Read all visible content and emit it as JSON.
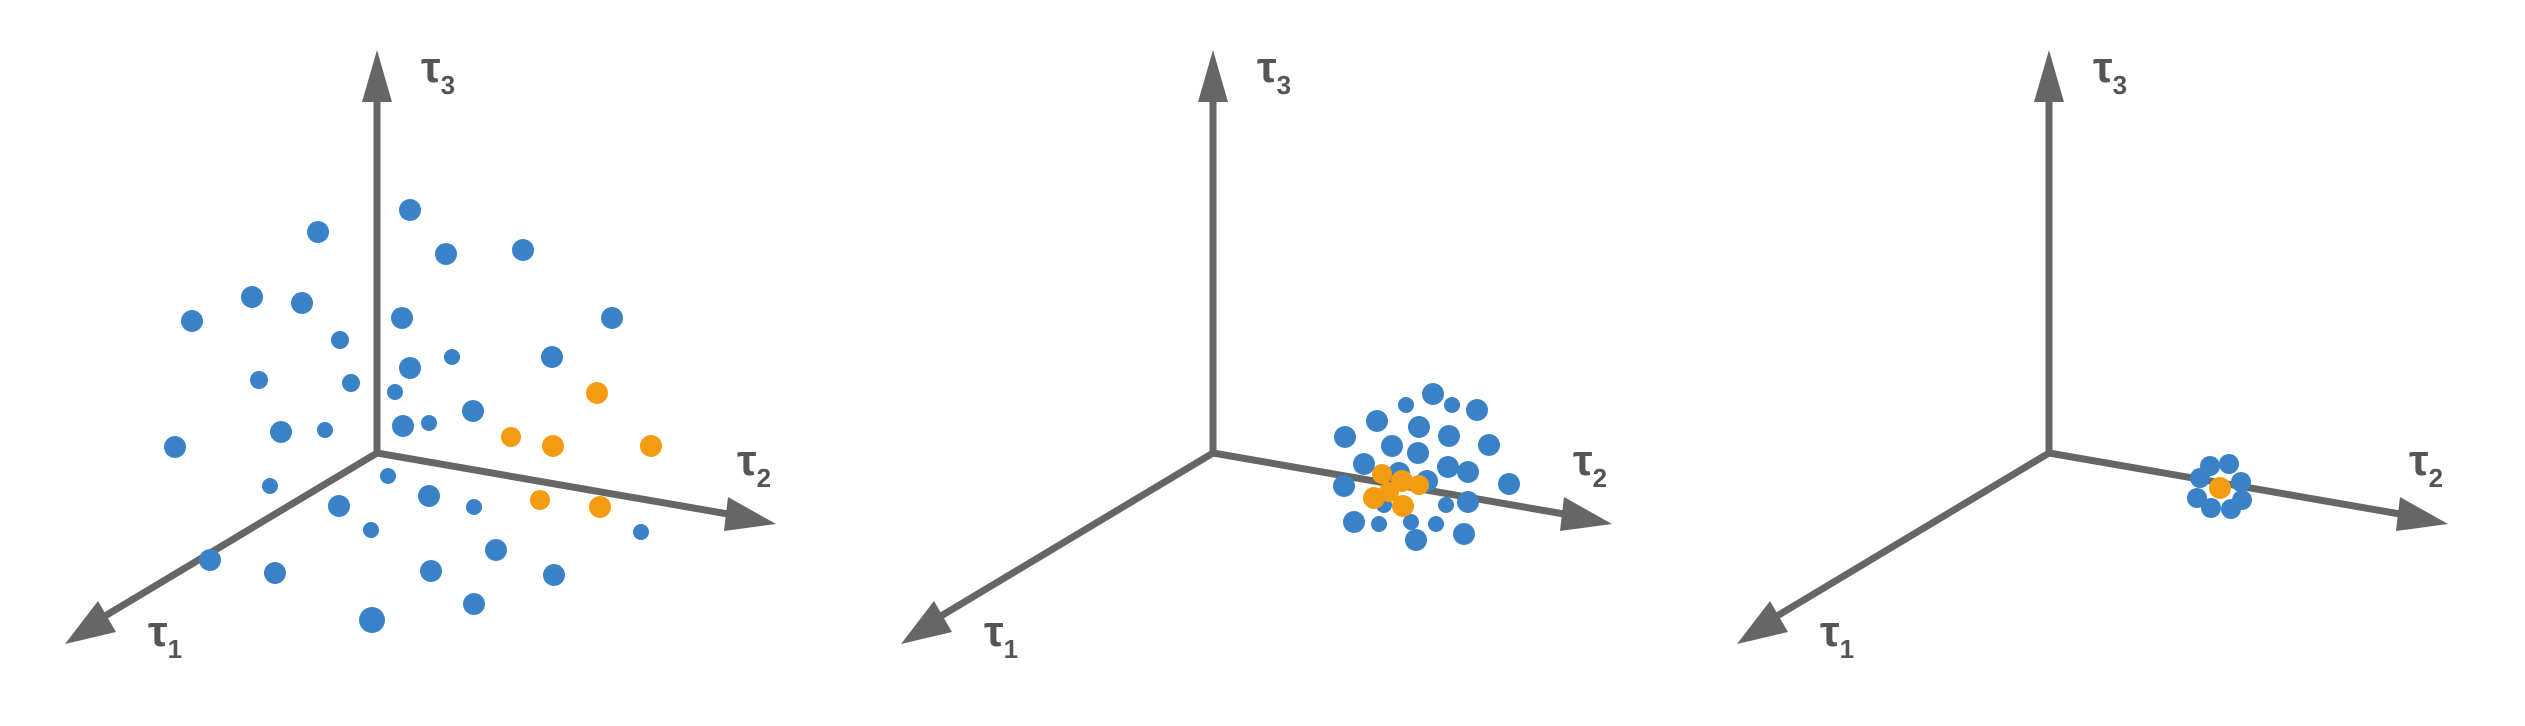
{
  "colors": {
    "axis": "#666666",
    "label": "#555555",
    "blue": "#3A82C8",
    "orange": "#F39C12",
    "background": "#ffffff"
  },
  "axes": {
    "tau1": {
      "symbol": "τ",
      "sub": "1"
    },
    "tau2": {
      "symbol": "τ",
      "sub": "2"
    },
    "tau3": {
      "symbol": "τ",
      "sub": "3"
    }
  },
  "panels": [
    {
      "spread": "wide"
    },
    {
      "spread": "medium"
    },
    {
      "spread": "tight"
    }
  ]
}
